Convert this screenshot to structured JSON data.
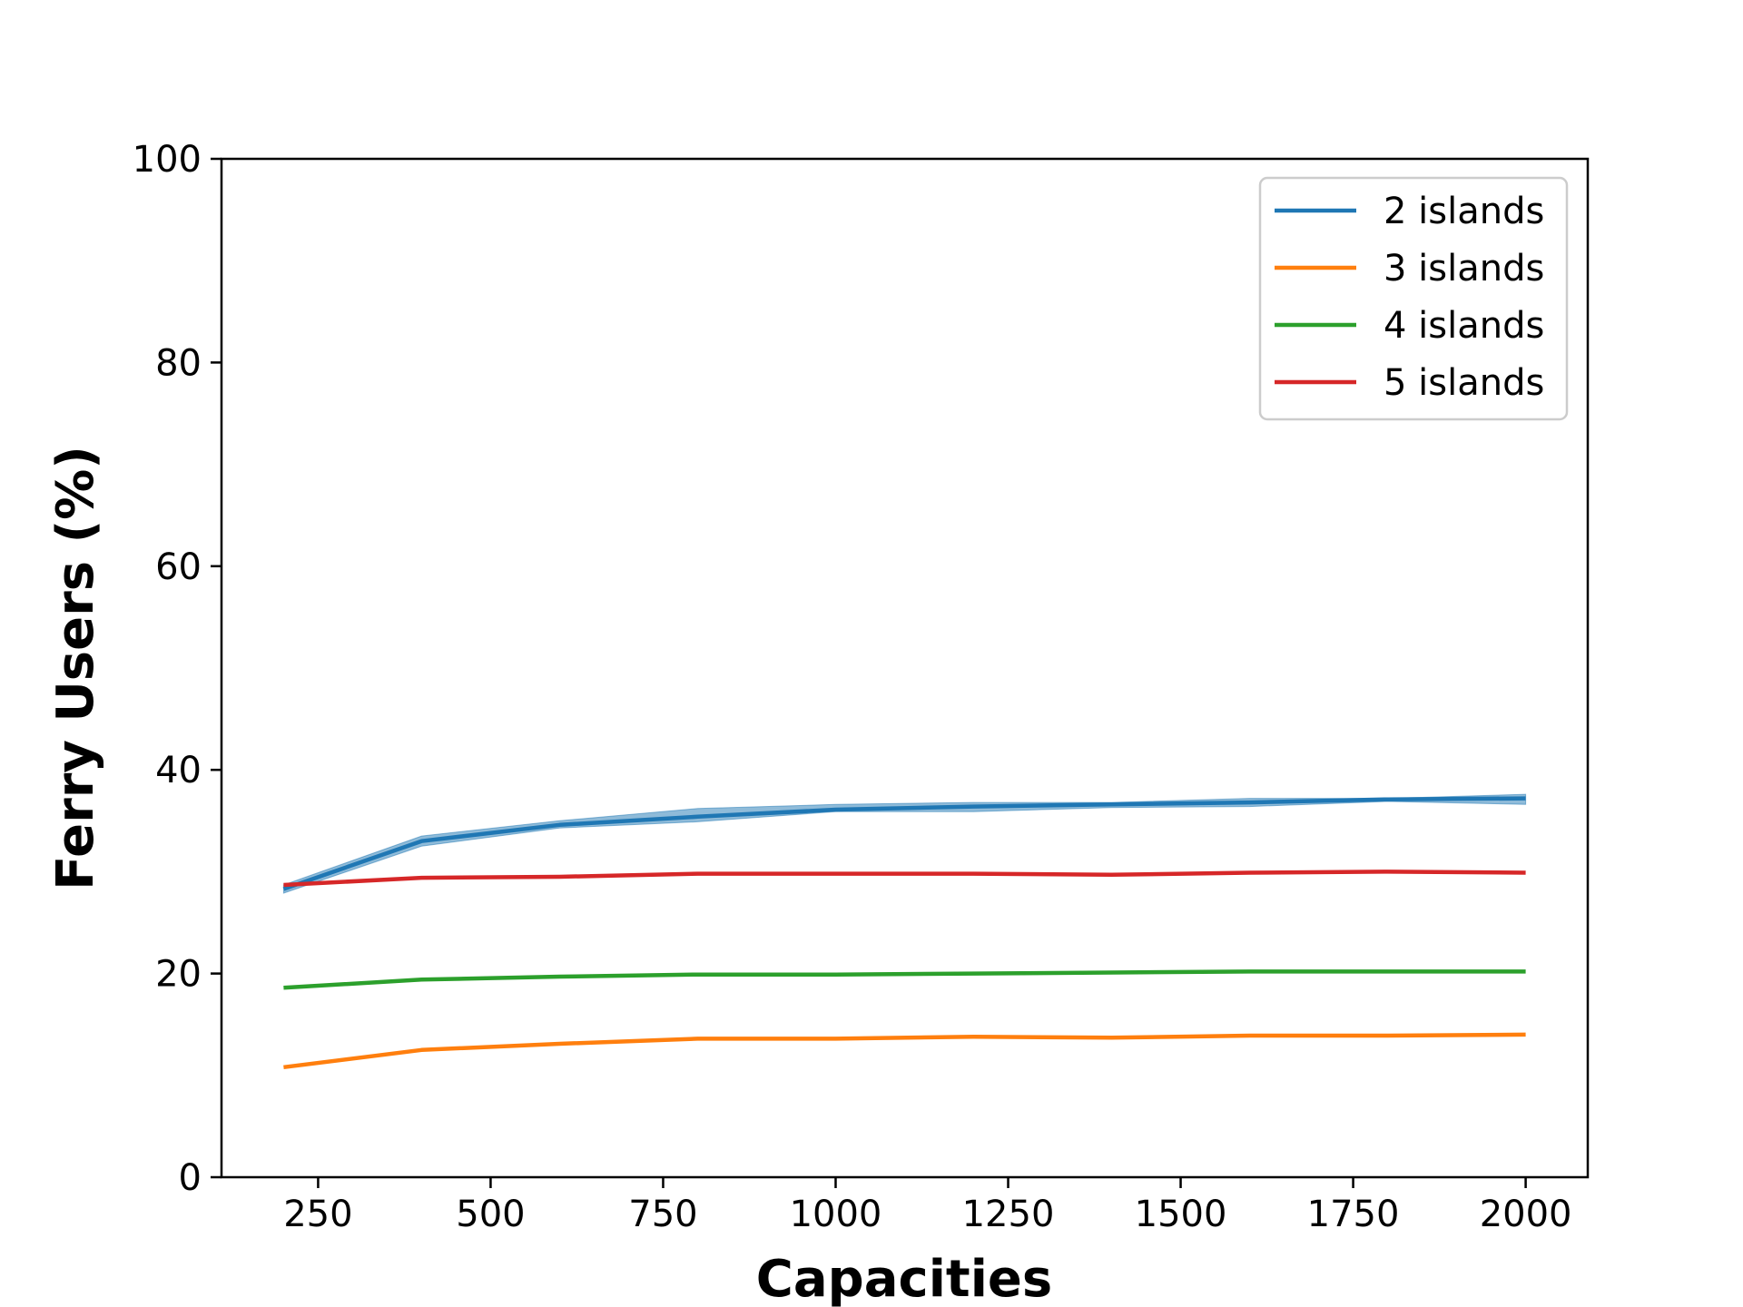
{
  "chart_data": {
    "type": "line",
    "title": "",
    "xlabel": "Capacities",
    "ylabel": "Ferry Users (%)",
    "xlim": [
      110,
      2090
    ],
    "ylim": [
      0,
      100
    ],
    "x_ticks": [
      250,
      500,
      750,
      1000,
      1250,
      1500,
      1750,
      2000
    ],
    "y_ticks": [
      0,
      20,
      40,
      60,
      80,
      100
    ],
    "grid": false,
    "legend_position": "top-right",
    "x": [
      200,
      400,
      600,
      800,
      1000,
      1200,
      1400,
      1600,
      1800,
      2000
    ],
    "series": [
      {
        "name": "2 islands",
        "color": "#1f77b4",
        "values": [
          28.3,
          33.0,
          34.6,
          35.4,
          36.1,
          36.4,
          36.6,
          36.8,
          37.1,
          37.2
        ],
        "band_low": [
          27.9,
          32.5,
          34.3,
          34.9,
          35.9,
          35.9,
          36.3,
          36.4,
          36.9,
          36.6
        ],
        "band_high": [
          28.7,
          33.5,
          35.0,
          36.2,
          36.6,
          36.8,
          36.8,
          37.2,
          37.2,
          37.6
        ]
      },
      {
        "name": "3 islands",
        "color": "#ff7f0e",
        "values": [
          10.8,
          12.5,
          13.1,
          13.6,
          13.6,
          13.8,
          13.7,
          13.9,
          13.9,
          14.0
        ]
      },
      {
        "name": "4 islands",
        "color": "#2ca02c",
        "values": [
          18.6,
          19.4,
          19.7,
          19.9,
          19.9,
          20.0,
          20.1,
          20.2,
          20.2,
          20.2
        ]
      },
      {
        "name": "5 islands",
        "color": "#d62728",
        "values": [
          28.7,
          29.4,
          29.5,
          29.8,
          29.8,
          29.8,
          29.7,
          29.9,
          30.0,
          29.9
        ]
      }
    ]
  }
}
